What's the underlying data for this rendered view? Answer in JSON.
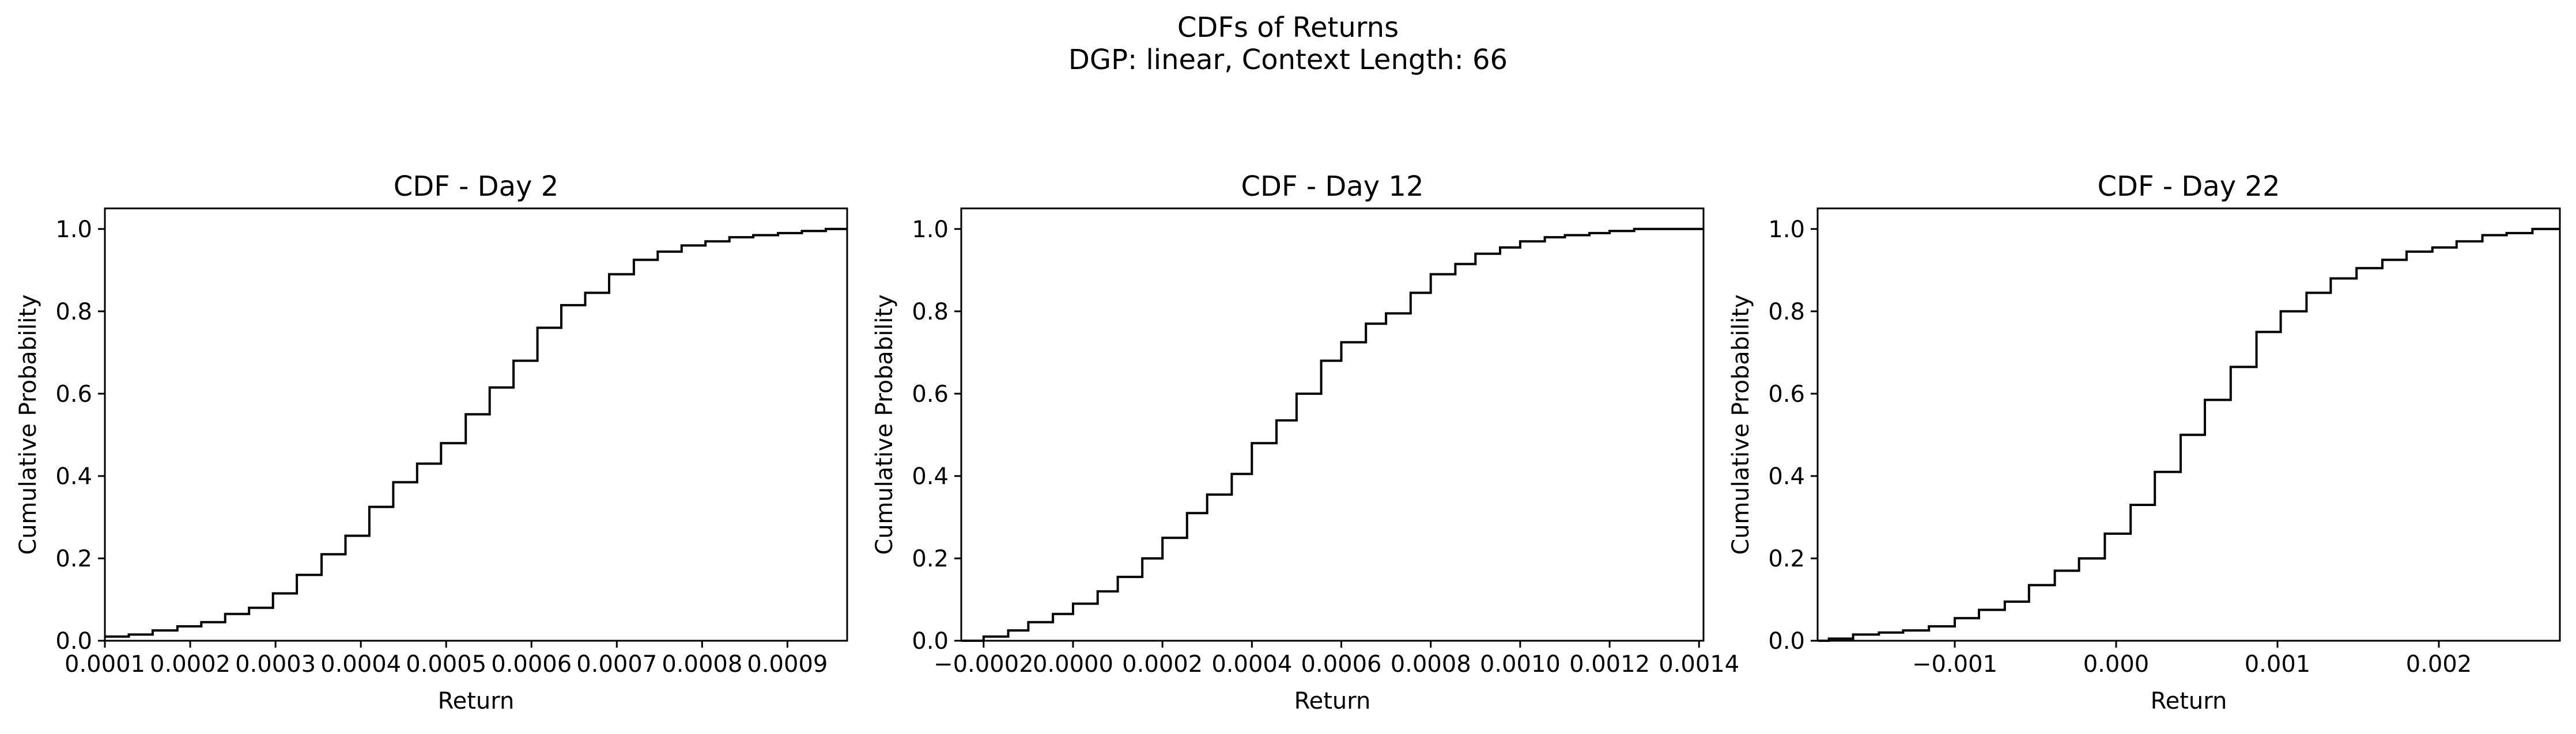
{
  "figure": {
    "title_line1": "CDFs of Returns",
    "title_line2": "DGP: linear, Context Length: 66"
  },
  "chart_data": [
    {
      "type": "line",
      "step": true,
      "title": "CDF - Day 2",
      "xlabel": "Return",
      "ylabel": "Cumulative Probability",
      "xlim": [
        0.0001,
        0.00097
      ],
      "ylim": [
        0,
        1.05
      ],
      "xticks": [
        0.0001,
        0.0002,
        0.0003,
        0.0004,
        0.0005,
        0.0006,
        0.0007,
        0.0008,
        0.0009
      ],
      "xtick_labels": [
        "0.0001",
        "0.0002",
        "0.0003",
        "0.0004",
        "0.0005",
        "0.0006",
        "0.0007",
        "0.0008",
        "0.0009"
      ],
      "yticks": [
        0,
        0.2,
        0.4,
        0.6,
        0.8,
        1.0
      ],
      "ytick_labels": [
        "0.0",
        "0.2",
        "0.4",
        "0.6",
        "0.8",
        "1.0"
      ],
      "line_color": "#000000",
      "x": [
        0.0001,
        0.000128,
        0.000156,
        0.000185,
        0.000213,
        0.000241,
        0.000269,
        0.000297,
        0.000325,
        0.000354,
        0.000382,
        0.00041,
        0.000438,
        0.000466,
        0.000494,
        0.000523,
        0.000551,
        0.000579,
        0.000607,
        0.000635,
        0.000663,
        0.000691,
        0.00072,
        0.000748,
        0.000776,
        0.000804,
        0.000832,
        0.00086,
        0.000889,
        0.000917,
        0.000945,
        0.00097
      ],
      "y": [
        0.01,
        0.015,
        0.025,
        0.035,
        0.045,
        0.065,
        0.08,
        0.115,
        0.16,
        0.21,
        0.255,
        0.325,
        0.385,
        0.43,
        0.48,
        0.55,
        0.615,
        0.68,
        0.76,
        0.815,
        0.845,
        0.89,
        0.925,
        0.945,
        0.96,
        0.97,
        0.98,
        0.985,
        0.99,
        0.995,
        1.0,
        1.0
      ]
    },
    {
      "type": "line",
      "step": true,
      "title": "CDF - Day 12",
      "xlabel": "Return",
      "ylabel": "Cumulative Probability",
      "xlim": [
        -0.00025,
        0.00141
      ],
      "ylim": [
        0,
        1.05
      ],
      "xticks": [
        -0.0002,
        0.0,
        0.0002,
        0.0004,
        0.0006,
        0.0008,
        0.001,
        0.0012,
        0.0014
      ],
      "xtick_labels": [
        "−0.0002",
        "0.0000",
        "0.0002",
        "0.0004",
        "0.0006",
        "0.0008",
        "0.0010",
        "0.0012",
        "0.0014"
      ],
      "yticks": [
        0,
        0.2,
        0.4,
        0.6,
        0.8,
        1.0
      ],
      "ytick_labels": [
        "0.0",
        "0.2",
        "0.4",
        "0.6",
        "0.8",
        "1.0"
      ],
      "line_color": "#000000",
      "x": [
        -0.00025,
        -0.0002,
        -0.000145,
        -0.0001,
        -4.5e-05,
        0.0,
        5.5e-05,
        0.0001,
        0.000155,
        0.0002,
        0.000255,
        0.0003,
        0.000355,
        0.0004,
        0.000455,
        0.0005,
        0.000555,
        0.0006,
        0.000655,
        0.0007,
        0.000755,
        0.0008,
        0.000855,
        0.0009,
        0.000955,
        0.001,
        0.001055,
        0.0011,
        0.001155,
        0.0012,
        0.001255,
        0.0013,
        0.00141
      ],
      "y": [
        0.0,
        0.01,
        0.025,
        0.045,
        0.065,
        0.09,
        0.12,
        0.155,
        0.2,
        0.25,
        0.31,
        0.355,
        0.405,
        0.48,
        0.535,
        0.6,
        0.68,
        0.725,
        0.77,
        0.795,
        0.845,
        0.89,
        0.915,
        0.94,
        0.955,
        0.97,
        0.98,
        0.985,
        0.99,
        0.995,
        1.0,
        1.0,
        1.0
      ]
    },
    {
      "type": "line",
      "step": true,
      "title": "CDF - Day 22",
      "xlabel": "Return",
      "ylabel": "Cumulative Probability",
      "xlim": [
        -0.00185,
        0.00275
      ],
      "ylim": [
        0,
        1.05
      ],
      "xticks": [
        -0.001,
        0.0,
        0.001,
        0.002
      ],
      "xtick_labels": [
        "−0.001",
        "0.000",
        "0.001",
        "0.002"
      ],
      "yticks": [
        0,
        0.2,
        0.4,
        0.6,
        0.8,
        1.0
      ],
      "ytick_labels": [
        "0.0",
        "0.2",
        "0.4",
        "0.6",
        "0.8",
        "1.0"
      ],
      "line_color": "#000000",
      "x": [
        -0.00185,
        -0.00178,
        -0.00163,
        -0.00147,
        -0.00132,
        -0.00116,
        -0.001,
        -0.00085,
        -0.00069,
        -0.00054,
        -0.00038,
        -0.00023,
        -7e-05,
        9e-05,
        0.00024,
        0.0004,
        0.00055,
        0.00071,
        0.00087,
        0.00102,
        0.00118,
        0.00133,
        0.00149,
        0.00165,
        0.0018,
        0.00196,
        0.00211,
        0.00227,
        0.00242,
        0.00258,
        0.00275
      ],
      "y": [
        0.0,
        0.005,
        0.015,
        0.02,
        0.025,
        0.035,
        0.055,
        0.075,
        0.095,
        0.135,
        0.17,
        0.2,
        0.26,
        0.33,
        0.41,
        0.5,
        0.585,
        0.665,
        0.75,
        0.8,
        0.845,
        0.88,
        0.905,
        0.925,
        0.945,
        0.955,
        0.97,
        0.985,
        0.99,
        1.0,
        1.0
      ]
    }
  ]
}
